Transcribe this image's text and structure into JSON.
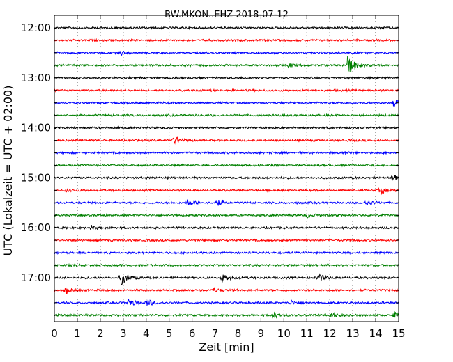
{
  "chart_data": {
    "type": "line",
    "title": "BW.MKON..EHZ 2018-07-12",
    "xlabel": "Zeit  [min]",
    "ylabel": "UTC (Lokalzeit = UTC + 02:00)",
    "x_ticks": [
      "0",
      "1",
      "2",
      "3",
      "4",
      "5",
      "6",
      "7",
      "8",
      "9",
      "10",
      "11",
      "12",
      "13",
      "14",
      "15"
    ],
    "xlim": [
      0,
      15
    ],
    "y_ticks": [
      "12:00",
      "13:00",
      "14:00",
      "15:00",
      "16:00",
      "17:00"
    ],
    "grid": "vertical dotted",
    "trace_colors": [
      "#000000",
      "#ff0000",
      "#0000ff",
      "#008000"
    ],
    "trace_interval_minutes": 15,
    "series": [
      {
        "start": "12:00",
        "color": "#000000",
        "events": []
      },
      {
        "start": "12:15",
        "color": "#ff0000",
        "events": []
      },
      {
        "start": "12:30",
        "color": "#0000ff",
        "events": [
          {
            "t": 2.9,
            "amp": 3
          }
        ]
      },
      {
        "start": "12:45",
        "color": "#008000",
        "events": [
          {
            "t": 12.75,
            "amp": 16
          },
          {
            "t": 10.2,
            "amp": 3
          }
        ]
      },
      {
        "start": "13:00",
        "color": "#000000",
        "events": []
      },
      {
        "start": "13:15",
        "color": "#ff0000",
        "events": []
      },
      {
        "start": "13:30",
        "color": "#0000ff",
        "events": [
          {
            "t": 14.75,
            "amp": 6
          }
        ]
      },
      {
        "start": "13:45",
        "color": "#008000",
        "events": []
      },
      {
        "start": "14:00",
        "color": "#000000",
        "events": []
      },
      {
        "start": "14:15",
        "color": "#ff0000",
        "events": [
          {
            "t": 5.2,
            "amp": 6
          }
        ]
      },
      {
        "start": "14:30",
        "color": "#0000ff",
        "events": [
          {
            "t": 12.6,
            "amp": 2
          }
        ]
      },
      {
        "start": "14:45",
        "color": "#008000",
        "events": []
      },
      {
        "start": "15:00",
        "color": "#000000",
        "events": [
          {
            "t": 14.75,
            "amp": 4
          }
        ]
      },
      {
        "start": "15:15",
        "color": "#ff0000",
        "events": [
          {
            "t": 14.2,
            "amp": 5
          },
          {
            "t": 0.5,
            "amp": 2
          }
        ]
      },
      {
        "start": "15:30",
        "color": "#0000ff",
        "events": [
          {
            "t": 5.8,
            "amp": 5
          },
          {
            "t": 7.0,
            "amp": 5
          },
          {
            "t": 13.6,
            "amp": 4
          }
        ]
      },
      {
        "start": "15:45",
        "color": "#008000",
        "events": [
          {
            "t": 11.0,
            "amp": 3
          }
        ]
      },
      {
        "start": "16:00",
        "color": "#000000",
        "events": [
          {
            "t": 1.6,
            "amp": 3
          }
        ]
      },
      {
        "start": "16:15",
        "color": "#ff0000",
        "events": []
      },
      {
        "start": "16:30",
        "color": "#0000ff",
        "events": []
      },
      {
        "start": "16:45",
        "color": "#008000",
        "events": []
      },
      {
        "start": "17:00",
        "color": "#000000",
        "events": [
          {
            "t": 2.9,
            "amp": 10
          },
          {
            "t": 7.3,
            "amp": 6
          },
          {
            "t": 11.5,
            "amp": 5
          }
        ]
      },
      {
        "start": "17:15",
        "color": "#ff0000",
        "events": [
          {
            "t": 0.5,
            "amp": 4
          },
          {
            "t": 6.9,
            "amp": 3
          }
        ]
      },
      {
        "start": "17:30",
        "color": "#0000ff",
        "events": [
          {
            "t": 3.2,
            "amp": 6
          },
          {
            "t": 4.0,
            "amp": 5
          },
          {
            "t": 10.3,
            "amp": 3
          }
        ]
      },
      {
        "start": "17:45",
        "color": "#008000",
        "events": [
          {
            "t": 9.5,
            "amp": 4
          },
          {
            "t": 12.0,
            "amp": 4
          },
          {
            "t": 14.8,
            "amp": 5
          }
        ]
      }
    ]
  }
}
